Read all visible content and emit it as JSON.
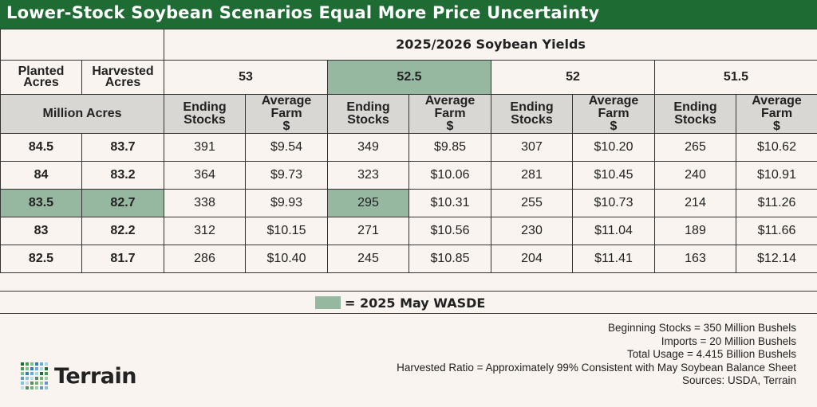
{
  "title": "Lower-Stock Soybean Scenarios Equal More Price Uncertainty",
  "table": {
    "yields_title": "2025/2026 Soybean Yields",
    "planted_label": "Planted Acres",
    "harvested_label": "Harvested Acres",
    "million_acres_label": "Million Acres",
    "stocks_label": "Ending Stocks",
    "price_label": "Average Farm $",
    "yields": [
      "53",
      "52.5",
      "52",
      "51.5"
    ],
    "highlight_yield_index": 1,
    "rows": [
      {
        "planted": "84.5",
        "harvested": "83.7",
        "cells": [
          [
            "391",
            "$9.54"
          ],
          [
            "349",
            "$9.85"
          ],
          [
            "307",
            "$10.20"
          ],
          [
            "265",
            "$10.62"
          ]
        ]
      },
      {
        "planted": "84",
        "harvested": "83.2",
        "cells": [
          [
            "364",
            "$9.73"
          ],
          [
            "323",
            "$10.06"
          ],
          [
            "281",
            "$10.45"
          ],
          [
            "240",
            "$10.91"
          ]
        ]
      },
      {
        "planted": "83.5",
        "harvested": "82.7",
        "highlight": true,
        "cells": [
          [
            "338",
            "$9.93"
          ],
          [
            "295",
            "$10.31"
          ],
          [
            "255",
            "$10.73"
          ],
          [
            "214",
            "$11.26"
          ]
        ]
      },
      {
        "planted": "83",
        "harvested": "82.2",
        "cells": [
          [
            "312",
            "$10.15"
          ],
          [
            "271",
            "$10.56"
          ],
          [
            "230",
            "$11.04"
          ],
          [
            "189",
            "$11.66"
          ]
        ]
      },
      {
        "planted": "82.5",
        "harvested": "81.7",
        "cells": [
          [
            "286",
            "$10.40"
          ],
          [
            "245",
            "$10.85"
          ],
          [
            "204",
            "$11.41"
          ],
          [
            "163",
            "$12.14"
          ]
        ]
      }
    ]
  },
  "legend": {
    "text": "= 2025 May WASDE",
    "color": "#96b7a0"
  },
  "notes": [
    "Beginning Stocks = 350 Million Bushels",
    "Imports = 20 Million Bushels",
    "Total Usage = 4.415 Billion Bushels",
    "Harvested Ratio = Approximately 99% Consistent with May Soybean Balance Sheet",
    "Sources: USDA, Terrain"
  ],
  "logo": {
    "text": "Terrain"
  },
  "colors": {
    "brand_green": "#1e6b34",
    "highlight": "#96b7a0",
    "header_gray": "#d9d7d4",
    "background": "#f9f4ef"
  }
}
